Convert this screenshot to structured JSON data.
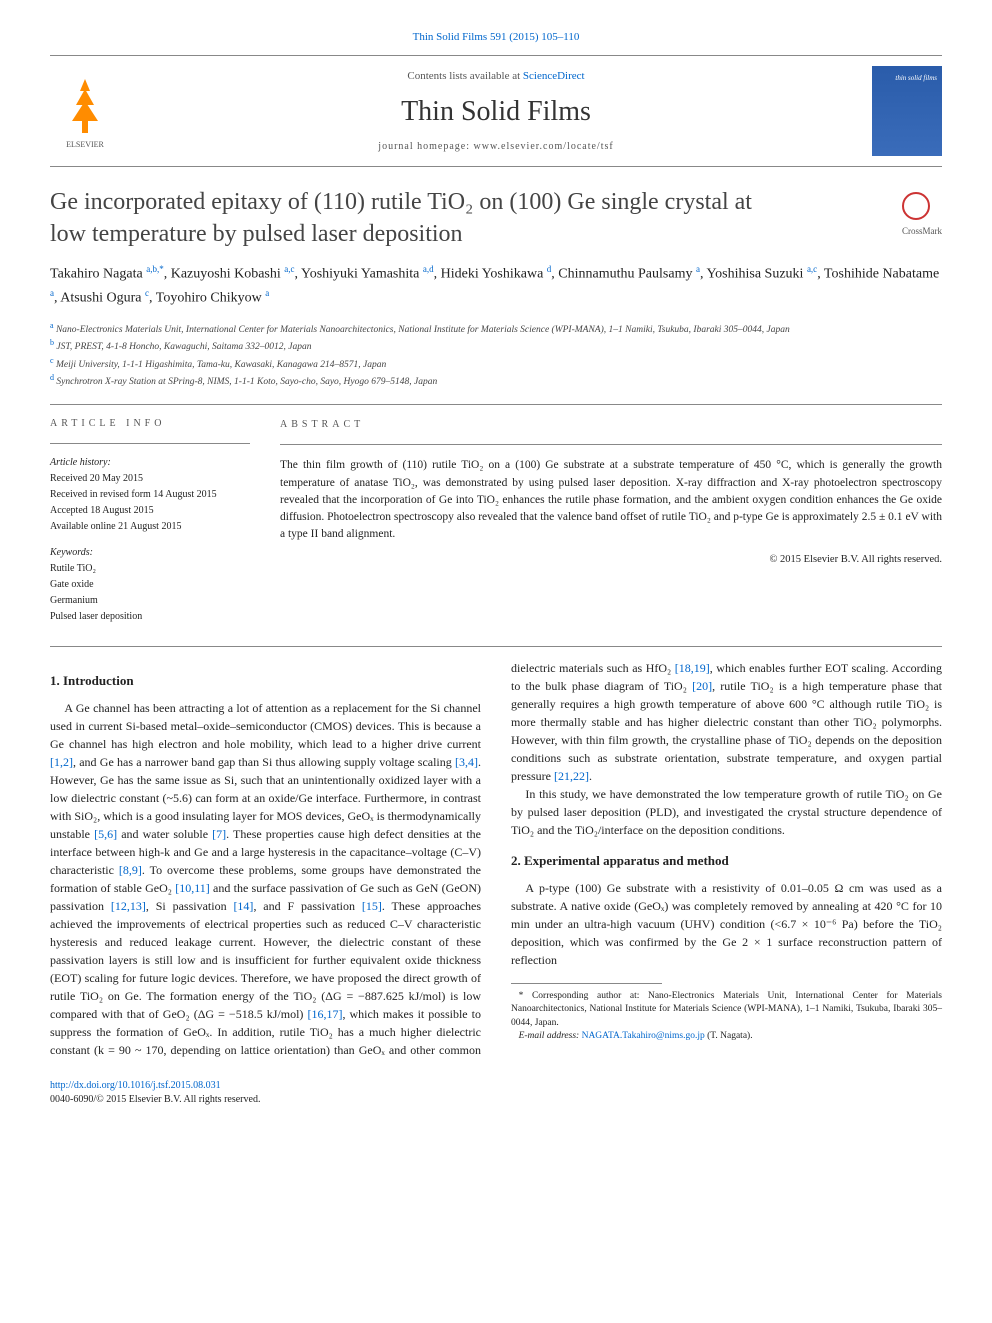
{
  "top_link": "Thin Solid Films 591 (2015) 105–110",
  "masthead": {
    "contents_pre": "Contents lists available at ",
    "contents_link": "ScienceDirect",
    "journal": "Thin Solid Films",
    "homepage": "journal homepage: www.elsevier.com/locate/tsf"
  },
  "title_line1": "Ge incorporated epitaxy of (110) rutile TiO₂ on (100) Ge single crystal at",
  "title_line2": "low temperature by pulsed laser deposition",
  "crossmark": "CrossMark",
  "authors": [
    {
      "name": "Takahiro Nagata ",
      "sup": "a,b,*"
    },
    {
      "name": ", Kazuyoshi Kobashi ",
      "sup": "a,c"
    },
    {
      "name": ", Yoshiyuki Yamashita ",
      "sup": "a,d"
    },
    {
      "name": ", Hideki Yoshikawa ",
      "sup": "d"
    },
    {
      "name": ", Chinnamuthu Paulsamy ",
      "sup": "a"
    },
    {
      "name": ", Yoshihisa Suzuki ",
      "sup": "a,c"
    },
    {
      "name": ", Toshihide Nabatame ",
      "sup": "a"
    },
    {
      "name": ", Atsushi Ogura ",
      "sup": "c"
    },
    {
      "name": ", Toyohiro Chikyow ",
      "sup": "a"
    }
  ],
  "affiliations": [
    {
      "sup": "a",
      "text": " Nano-Electronics Materials Unit, International Center for Materials Nanoarchitectonics, National Institute for Materials Science (WPI-MANA), 1–1 Namiki, Tsukuba, Ibaraki 305–0044, Japan"
    },
    {
      "sup": "b",
      "text": " JST, PREST, 4-1-8 Honcho, Kawaguchi, Saitama 332–0012, Japan"
    },
    {
      "sup": "c",
      "text": " Meiji University, 1-1-1 Higashimita, Tama-ku, Kawasaki, Kanagawa 214–8571, Japan"
    },
    {
      "sup": "d",
      "text": " Synchrotron X-ray Station at SPring-8, NIMS, 1-1-1 Koto, Sayo-cho, Sayo, Hyogo 679–5148, Japan"
    }
  ],
  "article_info": {
    "heading": "ARTICLE INFO",
    "history_label": "Article history:",
    "received": "Received 20 May 2015",
    "revised": "Received in revised form 14 August 2015",
    "accepted": "Accepted 18 August 2015",
    "online": "Available online 21 August 2015",
    "kw_label": "Keywords:",
    "keywords": [
      "Rutile TiO₂",
      "Gate oxide",
      "Germanium",
      "Pulsed laser deposition"
    ]
  },
  "abstract": {
    "heading": "ABSTRACT",
    "text": "The thin film growth of (110) rutile TiO₂ on a (100) Ge substrate at a substrate temperature of 450 °C, which is generally the growth temperature of anatase TiO₂, was demonstrated by using pulsed laser deposition. X-ray diffraction and X-ray photoelectron spectroscopy revealed that the incorporation of Ge into TiO₂ enhances the rutile phase formation, and the ambient oxygen condition enhances the Ge oxide diffusion. Photoelectron spectroscopy also revealed that the valence band offset of rutile TiO₂ and p-type Ge is approximately 2.5 ± 0.1 eV with a type II band alignment.",
    "copyright": "© 2015 Elsevier B.V. All rights reserved."
  },
  "sections": {
    "intro_heading": "1. Introduction",
    "intro_p1a": "A Ge channel has been attracting a lot of attention as a replacement for the Si channel used in current Si-based metal–oxide–semiconductor (CMOS) devices. This is because a Ge channel has high electron and hole mobility, which lead to a higher drive current ",
    "intro_r1": "[1,2]",
    "intro_p1b": ", and Ge has a narrower band gap than Si thus allowing supply voltage scaling ",
    "intro_r2": "[3,4]",
    "intro_p1c": ". However, Ge has the same issue as Si, such that an unintentionally oxidized layer with a low dielectric constant (~5.6) can form at an oxide/Ge interface. Furthermore, in contrast with SiO₂, which is a good insulating layer for MOS devices, GeOₓ is thermodynamically unstable ",
    "intro_r3": "[5,6]",
    "intro_p1d": " and water soluble ",
    "intro_r4": "[7]",
    "intro_p1e": ". These properties cause high defect densities at the interface between high-k and Ge and a large hysteresis in the capacitance–voltage (C–V) characteristic ",
    "intro_r5": "[8,9]",
    "intro_p1f": ". To overcome these problems, some groups have demonstrated the formation of stable GeO₂ ",
    "intro_r6": "[10,11]",
    "intro_p1g": " and the surface passivation of Ge such as GeN (GeON) passivation ",
    "intro_r7": "[12,13]",
    "intro_p1h": ", Si passivation ",
    "intro_r8": "[14]",
    "intro_p1i": ", and F passivation ",
    "intro_r9": "[15]",
    "intro_p1j": ". These approaches achieved the improvements of electrical properties such as reduced C–V characteristic hysteresis and reduced leakage current. However, the dielectric constant of these passivation layers is still low and is insufficient for further equivalent oxide thickness (EOT) scaling for future logic devices. Therefore, we have proposed the direct growth of rutile TiO₂ on Ge. The formation energy of the TiO₂ (ΔG = −887.625 kJ/mol) is low compared with that of GeO₂ (ΔG = −518.5 kJ/mol) ",
    "intro_r10": "[16,17]",
    "intro_p1k": ", which makes it possible to suppress the formation of GeOₓ. In addition, rutile TiO₂ has a much higher dielectric constant (k = 90 ~ 170, depending on lattice orientation) than GeOₓ and other common dielectric materials such as HfO₂ ",
    "intro_r11": "[18,19]",
    "intro_p1l": ", which enables further EOT scaling. According to the bulk phase diagram of TiO₂ ",
    "intro_r12": "[20]",
    "intro_p1m": ", rutile TiO₂ is a high temperature phase that generally requires a high growth temperature of above 600 °C although rutile TiO₂ is more thermally stable and has higher dielectric constant than other TiO₂ polymorphs. However, with thin film growth, the crystalline phase of TiO₂ depends on the deposition conditions such as substrate orientation, substrate temperature, and oxygen partial pressure ",
    "intro_r13": "[21,22]",
    "intro_p1n": ".",
    "intro_p2": "In this study, we have demonstrated the low temperature growth of rutile TiO₂ on Ge by pulsed laser deposition (PLD), and investigated the crystal structure dependence of TiO₂ and the TiO₂/interface on the deposition conditions.",
    "exp_heading": "2. Experimental apparatus and method",
    "exp_p1": "A p-type (100) Ge substrate with a resistivity of 0.01–0.05 Ω cm was used as a substrate. A native oxide (GeOₓ) was completely removed by annealing at 420 °C for 10 min under an ultra-high vacuum (UHV) condition (<6.7 × 10⁻⁶ Pa) before the TiO₂ deposition, which was confirmed by the Ge 2 × 1 surface reconstruction pattern of reflection"
  },
  "footnote": {
    "corr_label": "* Corresponding author at: Nano-Electronics Materials Unit, International Center for Materials Nanoarchitectonics, National Institute for Materials Science (WPI-MANA), 1–1 Namiki, Tsukuba, Ibaraki 305–0044, Japan.",
    "email_label": "E-mail address: ",
    "email": "NAGATA.Takahiro@nims.go.jp",
    "email_post": " (T. Nagata)."
  },
  "bottom": {
    "doi": "http://dx.doi.org/10.1016/j.tsf.2015.08.031",
    "issn": "0040-6090/© 2015 Elsevier B.V. All rights reserved."
  }
}
